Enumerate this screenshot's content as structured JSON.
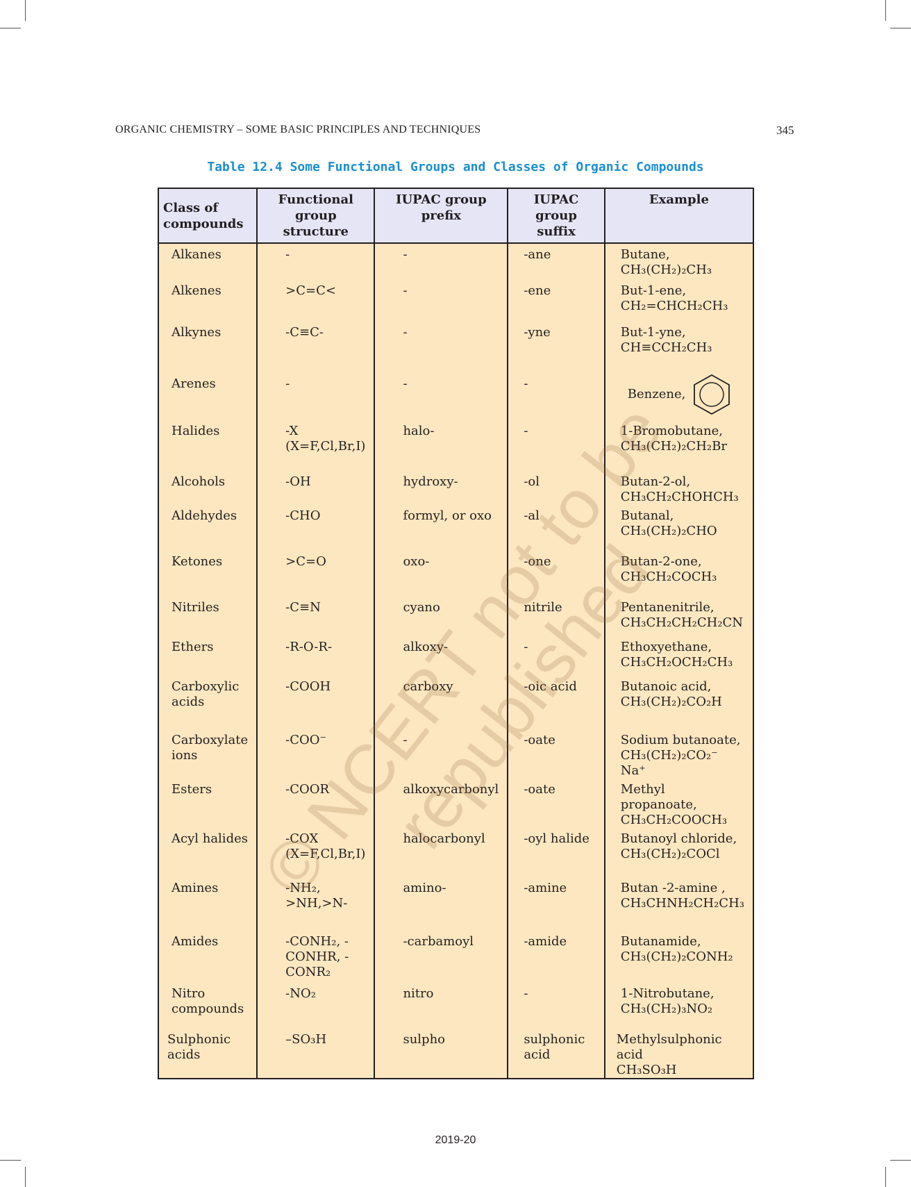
{
  "running_head": "ORGANIC CHEMISTRY – SOME BASIC PRINCIPLES AND TECHNIQUES",
  "page_number": "345",
  "table_title": "Table 12.4  Some Functional Groups and Classes of Organic Compounds",
  "headers": [
    "Class of compounds",
    "Functional group structure",
    "IUPAC group prefix",
    "IUPAC group suffix",
    "Example"
  ],
  "rows": [
    {
      "class": "Alkanes",
      "structure": "-",
      "prefix": "-",
      "suffix": "-ane",
      "example": "Butane,",
      "formula": "CH₃(CH₂)₂CH₃"
    },
    {
      "class": "Alkenes",
      "structure": ">C=C<",
      "prefix": "-",
      "suffix": "-ene",
      "example": "But-1-ene,",
      "formula": "CH₂=CHCH₂CH₃"
    },
    {
      "class": "Alkynes",
      "structure": "-C≡C-",
      "prefix": "-",
      "suffix": "-yne",
      "example": "But-1-yne,",
      "formula": "CH≡CCH₂CH₃"
    },
    {
      "class": "Arenes",
      "structure": "-",
      "prefix": "-",
      "suffix": "-",
      "example": "Benzene,",
      "formula": ""
    },
    {
      "class": "Halides",
      "structure": "-X (X=F,Cl,Br,I)",
      "prefix": "halo-",
      "suffix": "-",
      "example": "1-Bromobutane,",
      "formula": "CH₃(CH₂)₂CH₂Br"
    },
    {
      "class": "Alcohols",
      "structure": "-OH",
      "prefix": "hydroxy-",
      "suffix": "-ol",
      "example": "Butan-2-ol,",
      "formula": "CH₃CH₂CHOHCH₃"
    },
    {
      "class": "Aldehydes",
      "structure": "-CHO",
      "prefix": "formyl, or oxo",
      "suffix": "-al",
      "example": "Butanal,",
      "formula": "CH₃(CH₂)₂CHO"
    },
    {
      "class": "Ketones",
      "structure": ">C=O",
      "prefix": "oxo-",
      "suffix": "-one",
      "example": "Butan-2-one,",
      "formula": "CH₃CH₂COCH₃"
    },
    {
      "class": "Nitriles",
      "structure": "-C≡N",
      "prefix": "cyano",
      "suffix": "nitrile",
      "example": "Pentanenitrile,",
      "formula": "CH₃CH₂CH₂CH₂CN"
    },
    {
      "class": "Ethers",
      "structure": "-R-O-R-",
      "prefix": "alkoxy-",
      "suffix": "-",
      "example": "Ethoxyethane,",
      "formula": "CH₃CH₂OCH₂CH₃"
    },
    {
      "class": "Carboxylic acids",
      "structure": "-COOH",
      "prefix": "carboxy",
      "suffix": "-oic acid",
      "example": "Butanoic acid,",
      "formula": "CH₃(CH₂)₂CO₂H"
    },
    {
      "class": "Carboxylate ions",
      "structure": "-COO⁻",
      "prefix": "-",
      "suffix": "-oate",
      "example": "Sodium butanoate,",
      "formula": "CH₃(CH₂)₂CO₂⁻ Na⁺"
    },
    {
      "class": "Esters",
      "structure": "-COOR",
      "prefix": "alkoxycarbonyl",
      "suffix": "-oate",
      "example": "Methyl propanoate,",
      "formula": "CH₃CH₂COOCH₃"
    },
    {
      "class": "Acyl halides",
      "structure": "-COX (X=F,Cl,Br,I)",
      "prefix": "halocarbonyl",
      "suffix": "-oyl halide",
      "example": "Butanoyl chloride,",
      "formula": "CH₃(CH₂)₂COCl"
    },
    {
      "class": "Amines",
      "structure": "-NH₂, >NH,>N-",
      "prefix": "amino-",
      "suffix": "-amine",
      "example": "Butan -2-amine ,",
      "formula": "CH₃CHNH₂CH₂CH₃"
    },
    {
      "class": "Amides",
      "structure": "-CONH₂, -CONHR, -CONR₂",
      "prefix": "-carbamoyl",
      "suffix": "-amide",
      "example": "Butanamide,",
      "formula": "CH₃(CH₂)₂CONH₂"
    },
    {
      "class": "Nitro compounds",
      "structure": "-NO₂",
      "prefix": "nitro",
      "suffix": "-",
      "example": "1-Nitrobutane,",
      "formula": "CH₃(CH₂)₃NO₂"
    },
    {
      "class": "Sulphonic acids",
      "structure": "–SO₃H",
      "prefix": "sulpho",
      "suffix": "sulphonic acid",
      "example": "Methylsulphonic acid",
      "formula": "CH₃SO₃H"
    }
  ],
  "watermark": "© NCERT not to be republished",
  "footer": "2019-20",
  "colors": {
    "title": "#1b8ed1",
    "header_bg": "#e6e5f6",
    "body_bg": "#fde7c1",
    "watermark": "#966e46"
  }
}
